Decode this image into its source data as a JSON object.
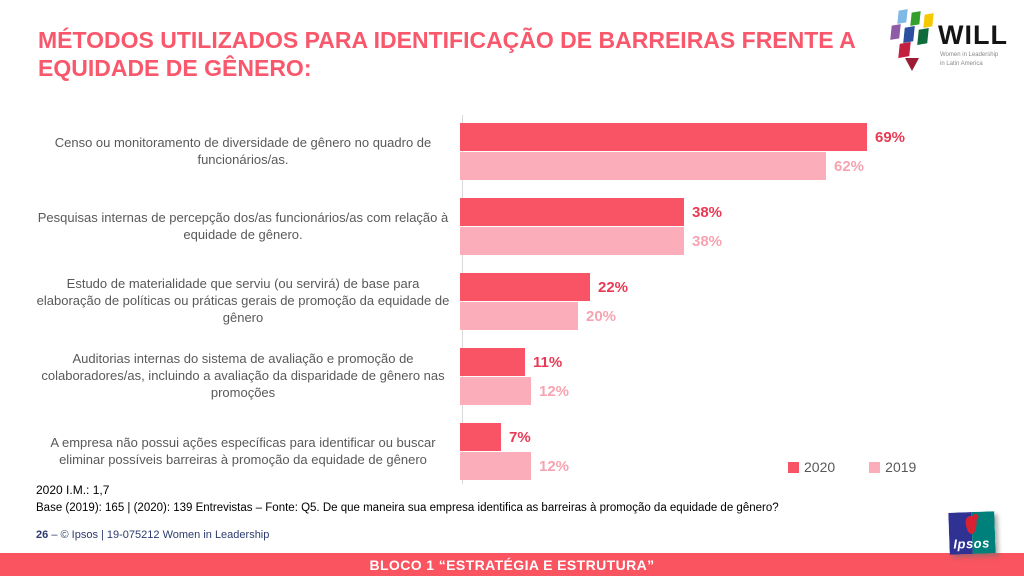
{
  "title": "MÉTODOS UTILIZADOS PARA IDENTIFICAÇÃO DE BARREIRAS FRENTE A EQUIDADE DE GÊNERO:",
  "notes": {
    "im_note": "2020 I.M.: 1,7",
    "base_note": "Base (2019): 165 | (2020): 139 Entrevistas – Fonte: Q5. De que maneira sua empresa identifica as barreiras à promoção da equidade de gênero?"
  },
  "footer": {
    "page_number": "26",
    "text": "–  © Ipsos | 19-075212 Women in Leadership"
  },
  "banner": "BLOCO 1 “ESTRATÉGIA E ESTRUTURA”",
  "logos": {
    "will": {
      "text": "WILL",
      "tagline_line1": "Women in Leadership",
      "tagline_line2": "in Latin America"
    },
    "ipsos": "Ipsos"
  },
  "colors": {
    "accent": "#F9586C",
    "banner_bg": "#F9545F",
    "series_2020": "#F95465",
    "series_2019": "#FBAEB9",
    "footer_blue": "#2C3B6E"
  },
  "chart_data": {
    "type": "bar",
    "orientation": "horizontal",
    "title": "MÉTODOS UTILIZADOS PARA IDENTIFICAÇÃO DE BARREIRAS FRENTE A EQUIDADE DE GÊNERO:",
    "categories": [
      "Censo ou monitoramento de diversidade de gênero no quadro de funcionários/as.",
      "Pesquisas internas de percepção dos/as funcionários/as com relação à equidade de gênero.",
      "Estudo de materialidade que serviu (ou servirá) de base para elaboração de políticas ou práticas gerais de promoção da equidade de gênero",
      "Auditorias internas do sistema de avaliação e promoção de colaboradores/as, incluindo a avaliação da disparidade de gênero nas promoções",
      "A empresa não possui ações específicas para identificar ou buscar eliminar possíveis barreiras à promoção da equidade de gênero"
    ],
    "series": [
      {
        "name": "2020",
        "color": "#F95465",
        "label_color": "#E83A54",
        "values": [
          69,
          38,
          22,
          11,
          7
        ]
      },
      {
        "name": "2019",
        "color": "#FBAEB9",
        "label_color": "#F7A3B1",
        "values": [
          62,
          38,
          20,
          12,
          12
        ]
      }
    ],
    "value_suffix": "%",
    "xlim": [
      0,
      100
    ],
    "grid": false,
    "legend_position": "bottom-right"
  }
}
